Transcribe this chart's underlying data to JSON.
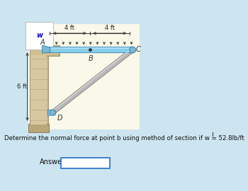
{
  "bg_outer": "#cce5f0",
  "bg_inner": "#faf8e8",
  "title_text": "Determine the normal force at point b using method of section if w = 52.8lb/ft",
  "answer_label": "Answer:",
  "dim_4ft_left": "4 ft",
  "dim_4ft_right": "4 ft",
  "label_w": "w",
  "label_A": "A",
  "label_B": "B",
  "label_C": "C",
  "label_D": "D",
  "label_6ft": "6 ft",
  "beam_color": "#87ceeb",
  "beam_edge": "#5599bb",
  "wall_face": "#c8b89a",
  "wall_shadow": "#a09070",
  "wall_light": "#d8c8a8",
  "rod_color": "#c8c8c8",
  "arrow_color": "#444444",
  "dim_arrow_color": "#333333",
  "answer_box_color": "#3377cc"
}
